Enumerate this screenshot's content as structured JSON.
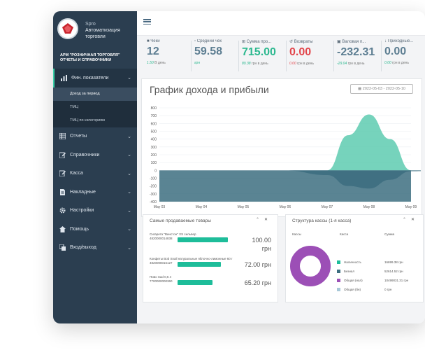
{
  "colors": {
    "sidebar": "#2b3e50",
    "accent": "#1ebd9a",
    "blue": "#5d7e92",
    "red": "#e2454b",
    "green": "#2cb88f",
    "purple": "#9c4fb6"
  },
  "sidebar": {
    "brand_line1": "Spro",
    "brand_line2": "Автоматизация",
    "brand_line3": "торговли",
    "arm_line1": "АРМ \"РОЗНИЧНАЯ ТОРГОВЛЯ\"",
    "arm_line2": "ОТЧЕТЫ И СПРАВОЧНИКИ",
    "menu": [
      {
        "label": "Фин. показатели",
        "icon": "chart-icon"
      },
      {
        "label": "Отчеты",
        "icon": "table-icon"
      },
      {
        "label": "Справочники",
        "icon": "edit-icon"
      },
      {
        "label": "Касса",
        "icon": "edit-icon"
      },
      {
        "label": "Накладные",
        "icon": "document-icon"
      },
      {
        "label": "Настройки",
        "icon": "gear-icon"
      },
      {
        "label": "Помощь",
        "icon": "home-icon"
      },
      {
        "label": "Вход/выход",
        "icon": "copy-icon"
      }
    ],
    "submenu": [
      "Доход за период",
      "ТМЦ",
      "ТМЦ по категориям"
    ]
  },
  "stats": [
    {
      "label": "Чеки",
      "value": "12",
      "sub_val": "1.50",
      "sub_rest": "В день",
      "color": "#5d7e92",
      "sub_color": "#2cb88f"
    },
    {
      "label": "Средний чек",
      "value": "59.58",
      "sub_val": "грн",
      "sub_rest": "",
      "color": "#5d7e92",
      "sub_color": "#2cb88f"
    },
    {
      "label": "Сумма про...",
      "value": "715.00",
      "sub_val": "89.38",
      "sub_rest": "грн в день",
      "color": "#2cb88f",
      "sub_color": "#2cb88f"
    },
    {
      "label": "Возвраты",
      "value": "0.00",
      "sub_val": "0.00",
      "sub_rest": "грн в день",
      "color": "#e2454b",
      "sub_color": "#e2454b"
    },
    {
      "label": "Валовая п...",
      "value": "-232.31",
      "sub_val": "-29.04",
      "sub_rest": "грн в день",
      "color": "#5d7e92",
      "sub_color": "#2cb88f"
    },
    {
      "label": "Приходные...",
      "value": "0.00",
      "sub_val": "0.00",
      "sub_rest": "грн в день",
      "color": "#5d7e92",
      "sub_color": "#2cb88f"
    }
  ],
  "chart_data": {
    "type": "area",
    "title": "График дохода и прибыли",
    "date_range": "2022-05-03 - 2022-05-10",
    "y_ticks": [
      800,
      700,
      600,
      500,
      400,
      300,
      200,
      100,
      0,
      -100,
      -200,
      -300,
      -400
    ],
    "ylim": [
      -400,
      800
    ],
    "x_labels": [
      "May 03",
      "May 04",
      "May 05",
      "May 06",
      "May 07",
      "May 08",
      "May 09"
    ],
    "series": [
      {
        "name": "",
        "color": "#5ecbb0",
        "x": [
          0,
          1,
          2,
          3,
          4,
          4.5,
          5,
          5.5,
          6,
          7
        ],
        "values": [
          0,
          0,
          0,
          0,
          0,
          450,
          715,
          400,
          0,
          0
        ]
      },
      {
        "name": "",
        "color": "#3d6e80",
        "x": [
          0,
          1,
          2,
          3,
          4,
          4.5,
          5,
          5.5,
          6,
          7
        ],
        "values": [
          0,
          0,
          0,
          0,
          -60,
          -200,
          -232,
          -120,
          -10,
          0
        ]
      }
    ]
  },
  "products": {
    "title": "Самые продаваемые товары",
    "items": [
      {
        "name": "Сигарета \"Винстон\" XS сильвер",
        "code": "4820000014838",
        "price": "100.00",
        "unit": "грн",
        "fraction": 0.72
      },
      {
        "name": "Конфеты Bob Snail натуральные яблочно-лимонные 60 г",
        "code": "4820008016127",
        "price": "72.00 грн",
        "unit": "",
        "fraction": 0.62
      },
      {
        "name": "Пиво Sad 0,5 л",
        "code": "7700000000360",
        "price": "65.20 грн",
        "unit": "",
        "fraction": 0.5
      }
    ]
  },
  "cash": {
    "title": "Структура кассы (1-я касса)",
    "headers": [
      "Кассы",
      "Касса",
      "Сумма"
    ],
    "rows": [
      {
        "label": "Наличность",
        "value": "16699.38 грн",
        "color": "#1ebd9a"
      },
      {
        "label": "Безнал",
        "value": "52614.52 грн",
        "color": "#3d6e80"
      },
      {
        "label": "Общая (нал)",
        "value": "10499031.31 грн",
        "color": "#9c4fb6"
      },
      {
        "label": "Общая (бн)",
        "value": "0 грн",
        "color": "#a8c8d8"
      }
    ]
  }
}
